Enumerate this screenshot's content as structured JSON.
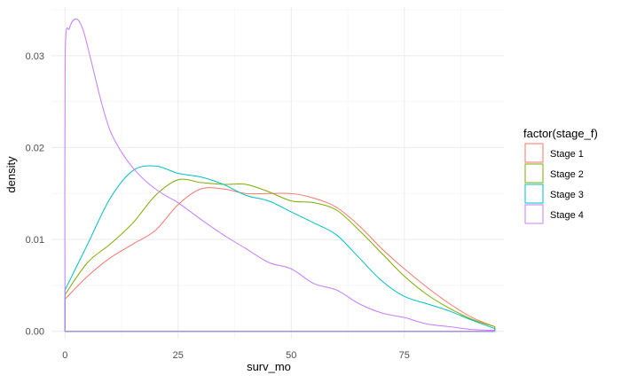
{
  "chart_data": {
    "type": "area",
    "xlabel": "surv_mo",
    "ylabel": "density",
    "xlim": [
      -3,
      97
    ],
    "ylim": [
      -0.0008,
      0.0353
    ],
    "x_ticks": [
      0,
      25,
      50,
      75
    ],
    "x_tick_labels": [
      "0",
      "25",
      "50",
      "75"
    ],
    "y_ticks": [
      0.0,
      0.01,
      0.02,
      0.03
    ],
    "y_tick_labels": [
      "0.00",
      "0.01",
      "0.02",
      "0.03"
    ],
    "grid": true,
    "legend": {
      "title": "factor(stage_f)",
      "position": "right"
    },
    "series": [
      {
        "name": "Stage 1",
        "color": "#F8766D",
        "x": [
          0,
          5,
          10,
          15,
          20,
          25,
          30,
          35,
          40,
          45,
          50,
          55,
          60,
          65,
          70,
          75,
          80,
          85,
          90,
          95
        ],
        "y": [
          0.0035,
          0.006,
          0.008,
          0.0095,
          0.011,
          0.0138,
          0.0155,
          0.0155,
          0.015,
          0.015,
          0.015,
          0.0145,
          0.0135,
          0.0115,
          0.009,
          0.0068,
          0.0048,
          0.003,
          0.0015,
          0.0005
        ]
      },
      {
        "name": "Stage 2",
        "color": "#7CAE00",
        "x": [
          0,
          5,
          10,
          15,
          20,
          25,
          30,
          35,
          40,
          45,
          50,
          55,
          60,
          65,
          70,
          75,
          80,
          85,
          90,
          95
        ],
        "y": [
          0.004,
          0.0075,
          0.0095,
          0.0118,
          0.0148,
          0.0165,
          0.0162,
          0.016,
          0.016,
          0.0152,
          0.0142,
          0.014,
          0.0132,
          0.011,
          0.0085,
          0.006,
          0.004,
          0.0025,
          0.0013,
          0.0005
        ]
      },
      {
        "name": "Stage 3",
        "color": "#00BFC4",
        "x": [
          0,
          5,
          10,
          15,
          20,
          25,
          30,
          35,
          40,
          45,
          50,
          55,
          60,
          65,
          70,
          75,
          80,
          85,
          90,
          95
        ],
        "y": [
          0.0045,
          0.0095,
          0.0145,
          0.0175,
          0.018,
          0.0172,
          0.0168,
          0.016,
          0.0148,
          0.0142,
          0.013,
          0.0118,
          0.0105,
          0.008,
          0.0055,
          0.0038,
          0.003,
          0.0022,
          0.0012,
          0.0003
        ]
      },
      {
        "name": "Stage 4",
        "color": "#C77CFF",
        "x": [
          0,
          0.02,
          1,
          2.5,
          4,
          6,
          8,
          10,
          12.5,
          15,
          17.5,
          20,
          22.5,
          25,
          30,
          35,
          40,
          45,
          50,
          55,
          60,
          65,
          70,
          75,
          80,
          85,
          90,
          95
        ],
        "y": [
          0.0,
          0.0295,
          0.033,
          0.034,
          0.0328,
          0.029,
          0.025,
          0.0218,
          0.0195,
          0.0178,
          0.0165,
          0.0155,
          0.0147,
          0.014,
          0.0122,
          0.0105,
          0.009,
          0.0075,
          0.0068,
          0.0052,
          0.0045,
          0.003,
          0.002,
          0.0015,
          0.0008,
          0.0005,
          0.0002,
          0.0001
        ]
      }
    ]
  }
}
